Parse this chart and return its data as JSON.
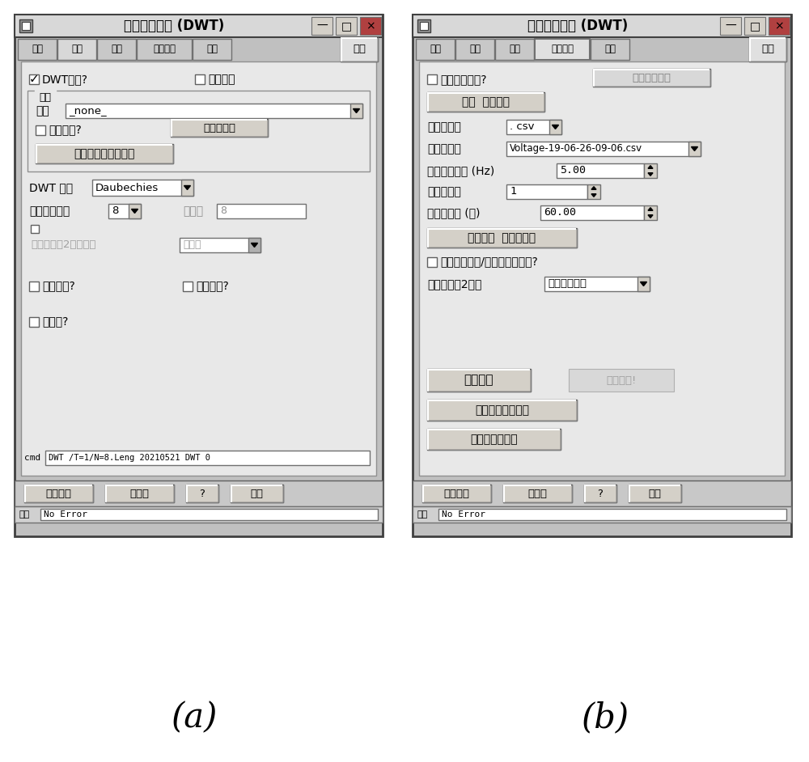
{
  "title": "实时离散小波 (DWT)",
  "label_a": "(a)",
  "label_b": "(b)",
  "bg": "#ffffff",
  "win_bg": "#c0c0c0",
  "content_bg": "#e8e8e8",
  "tab_bg": "#d0d0d0",
  "btn_bg": "#d4d0c8",
  "field_bg": "#ffffff",
  "border": "#606060",
  "dark_border": "#404040",
  "title_bar_bg": "#d8d8d8"
}
